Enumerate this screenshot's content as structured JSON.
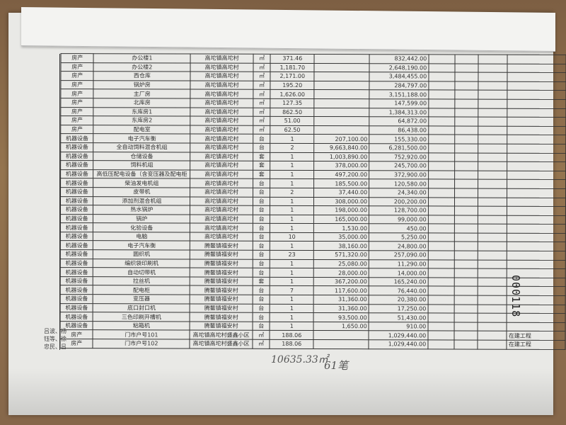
{
  "table": {
    "rows": [
      [
        "房产",
        "办公楼1",
        "高坨镇高坨村",
        "㎡",
        "371.46",
        "",
        "832,442.00",
        ""
      ],
      [
        "房产",
        "办公楼2",
        "高坨镇高坨村",
        "㎡",
        "1,181.70",
        "",
        "2,648,190.00",
        ""
      ],
      [
        "房产",
        "西仓库",
        "高坨镇高坨村",
        "㎡",
        "2,171.00",
        "",
        "3,484,455.00",
        ""
      ],
      [
        "房产",
        "锅炉房",
        "高坨镇高坨村",
        "㎡",
        "195.20",
        "",
        "284,797.00",
        ""
      ],
      [
        "房产",
        "主厂房",
        "高坨镇高坨村",
        "㎡",
        "1,626.00",
        "",
        "3,151,188.00",
        ""
      ],
      [
        "房产",
        "北库房",
        "高坨镇高坨村",
        "㎡",
        "127.35",
        "",
        "147,599.00",
        ""
      ],
      [
        "房产",
        "东库房1",
        "高坨镇高坨村",
        "㎡",
        "862.50",
        "",
        "1,384,313.00",
        ""
      ],
      [
        "房产",
        "东库房2",
        "高坨镇高坨村",
        "㎡",
        "51.00",
        "",
        "64,872.00",
        ""
      ],
      [
        "房产",
        "配电室",
        "高坨镇高坨村",
        "㎡",
        "62.50",
        "",
        "86,438.00",
        ""
      ],
      [
        "机器设备",
        "电子汽车衡",
        "高坨镇高坨村",
        "台",
        "1",
        "207,100.00",
        "155,330.00",
        ""
      ],
      [
        "机器设备",
        "全自动饲料混合机组",
        "高坨镇高坨村",
        "台",
        "2",
        "9,663,840.00",
        "6,281,500.00",
        ""
      ],
      [
        "机器设备",
        "仓储设备",
        "高坨镇高坨村",
        "套",
        "1",
        "1,003,890.00",
        "752,920.00",
        ""
      ],
      [
        "机器设备",
        "饲料机组",
        "高坨镇高坨村",
        "套",
        "1",
        "378,000.00",
        "245,700.00",
        ""
      ],
      [
        "机器设备",
        "高低压配电设备（含变压器及配电柜",
        "高坨镇高坨村",
        "套",
        "1",
        "497,200.00",
        "372,900.00",
        ""
      ],
      [
        "机器设备",
        "柴油发电机组",
        "高坨镇高坨村",
        "台",
        "1",
        "185,500.00",
        "120,580.00",
        ""
      ],
      [
        "机器设备",
        "皮带机",
        "高坨镇高坨村",
        "台",
        "2",
        "37,440.00",
        "24,340.00",
        ""
      ],
      [
        "机器设备",
        "添加剂混合机组",
        "高坨镇高坨村",
        "台",
        "1",
        "308,000.00",
        "200,200.00",
        ""
      ],
      [
        "机器设备",
        "热水锅炉",
        "高坨镇高坨村",
        "台",
        "1",
        "198,000.00",
        "128,700.00",
        ""
      ],
      [
        "机器设备",
        "锅炉",
        "高坨镇高坨村",
        "台",
        "1",
        "165,000.00",
        "99,000.00",
        ""
      ],
      [
        "机器设备",
        "化验设备",
        "高坨镇高坨村",
        "台",
        "1",
        "1,530.00",
        "450.00",
        ""
      ],
      [
        "机器设备",
        "电脑",
        "高坨镇高坨村",
        "台",
        "10",
        "35,000.00",
        "5,250.00",
        ""
      ],
      [
        "机器设备",
        "电子汽车衡",
        "腾鳌镇福安村",
        "台",
        "1",
        "38,160.00",
        "24,800.00",
        ""
      ],
      [
        "机器设备",
        "圆织机",
        "腾鳌镇福安村",
        "台",
        "23",
        "571,320.00",
        "257,090.00",
        ""
      ],
      [
        "机器设备",
        "编织袋印刷机",
        "腾鳌镇福安村",
        "台",
        "1",
        "25,080.00",
        "11,290.00",
        ""
      ],
      [
        "机器设备",
        "自动切带机",
        "腾鳌镇福安村",
        "台",
        "1",
        "28,000.00",
        "14,000.00",
        ""
      ],
      [
        "机器设备",
        "拉丝机",
        "腾鳌镇福安村",
        "套",
        "1",
        "367,200.00",
        "165,240.00",
        ""
      ],
      [
        "机器设备",
        "配电柜",
        "腾鳌镇福安村",
        "台",
        "7",
        "117,600.00",
        "76,440.00",
        ""
      ],
      [
        "机器设备",
        "变压器",
        "腾鳌镇福安村",
        "台",
        "1",
        "31,360.00",
        "20,380.00",
        ""
      ],
      [
        "机器设备",
        "底口封口机",
        "腾鳌镇福安村",
        "台",
        "1",
        "31,360.00",
        "17,250.00",
        ""
      ],
      [
        "机器设备",
        "三色印刷开槽机",
        "腾鳌镇福安村",
        "台",
        "1",
        "93,500.00",
        "51,430.00",
        ""
      ],
      [
        "机器设备",
        "粘箱机",
        "腾鳌镇福安村",
        "台",
        "1",
        "1,650.00",
        "910.00",
        ""
      ],
      [
        "房产",
        "门市户号101",
        "高坨镇高坨村盛鑫小区",
        "㎡",
        "188.06",
        "",
        "1,029,440.00",
        "在建工程"
      ],
      [
        "房产",
        "门市户号102",
        "高坨镇高坨村盛鑫小区",
        "㎡",
        "188.06",
        "",
        "1,029,440.00",
        "在建工程"
      ]
    ]
  },
  "owners": [
    "吕波、杨",
    "钰等、徐",
    "忠民、吕"
  ],
  "handwriting": {
    "area": "10635.33㎡",
    "count": "61笔"
  },
  "stamp": "000118"
}
